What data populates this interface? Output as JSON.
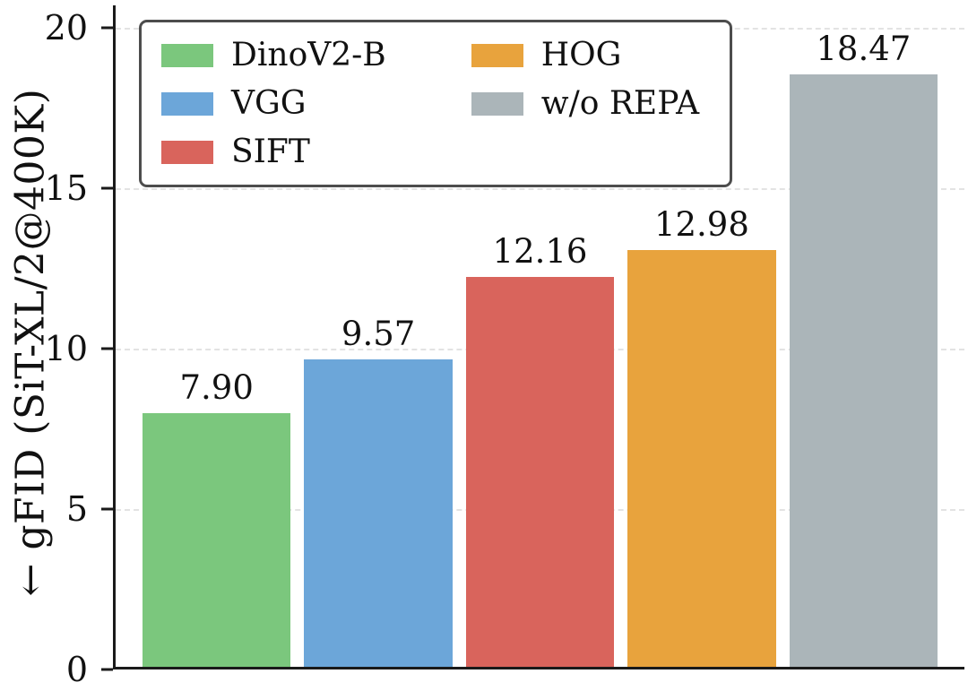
{
  "chart_data": {
    "type": "bar",
    "categories": [
      "DinoV2-B",
      "VGG",
      "SIFT",
      "HOG",
      "w/o REPA"
    ],
    "values": [
      7.9,
      9.57,
      12.16,
      12.98,
      18.47
    ],
    "value_labels": [
      "7.90",
      "9.57",
      "12.16",
      "12.98",
      "18.47"
    ],
    "colors": [
      "#7bc77d",
      "#6ca6d9",
      "#d9645c",
      "#e8a33d",
      "#abb5b9"
    ],
    "title": "",
    "xlabel": "",
    "ylabel": "← gFID (SiT-XL/2@400K)",
    "ylim": [
      0,
      20
    ],
    "yticks": [
      0,
      5,
      10,
      15,
      20
    ],
    "grid": "horizontal-dashed",
    "legend_position": "upper left",
    "legend_columns": 2,
    "legend": [
      {
        "label": "DinoV2-B",
        "color": "#7bc77d"
      },
      {
        "label": "VGG",
        "color": "#6ca6d9"
      },
      {
        "label": "SIFT",
        "color": "#d9645c"
      },
      {
        "label": "HOG",
        "color": "#e8a33d"
      },
      {
        "label": "w/o REPA",
        "color": "#abb5b9"
      }
    ]
  }
}
